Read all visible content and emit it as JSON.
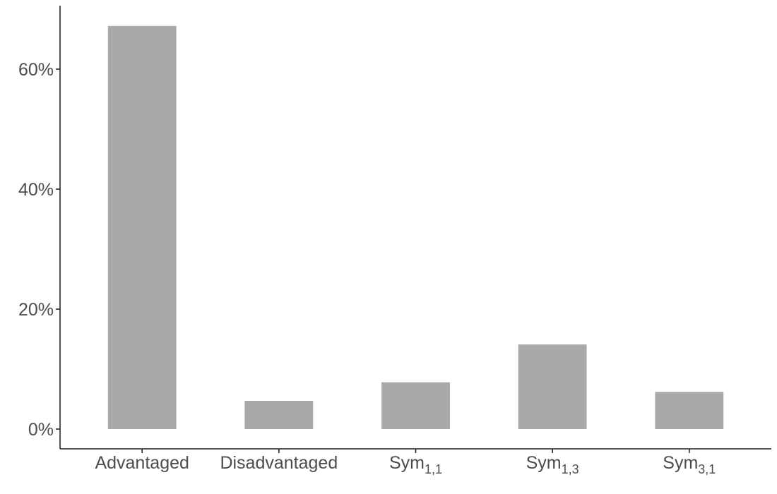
{
  "chart_data": {
    "type": "bar",
    "title": "",
    "xlabel": "",
    "ylabel": "",
    "categories": [
      {
        "base": "Advantaged",
        "sub": ""
      },
      {
        "base": "Disadvantaged",
        "sub": ""
      },
      {
        "base": "Sym",
        "sub": "1,1"
      },
      {
        "base": "Sym",
        "sub": "1,3"
      },
      {
        "base": "Sym",
        "sub": "3,1"
      }
    ],
    "values": [
      0.672,
      0.047,
      0.078,
      0.141,
      0.062
    ],
    "ylim": [
      0,
      0.7
    ],
    "yticks": [
      {
        "value": 0.0,
        "label": "0%"
      },
      {
        "value": 0.2,
        "label": "20%"
      },
      {
        "value": 0.4,
        "label": "40%"
      },
      {
        "value": 0.6,
        "label": "60%"
      }
    ],
    "bar_color": "#a9a9a9",
    "grid": false,
    "legend": "none"
  }
}
